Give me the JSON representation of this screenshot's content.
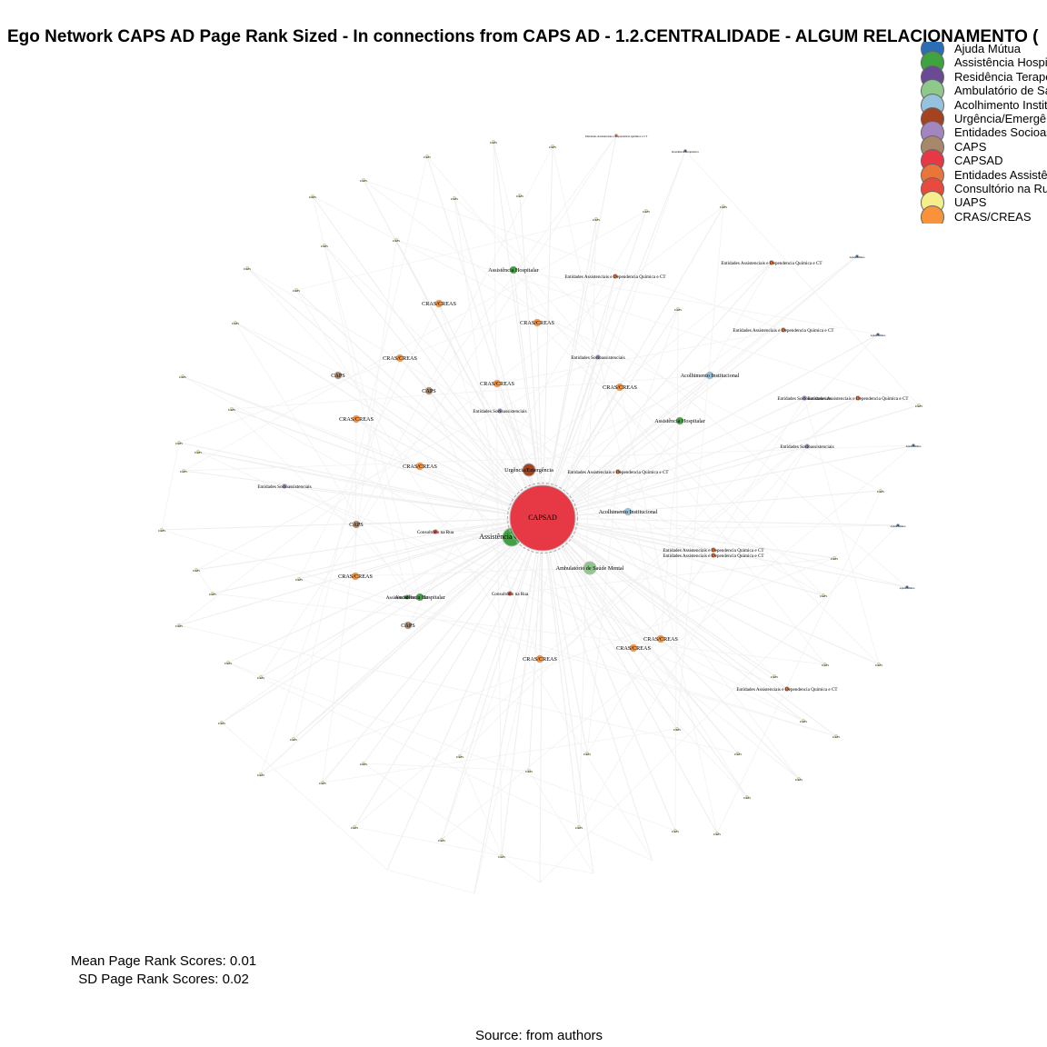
{
  "title": "Ego Network CAPS AD Page Rank Sized - In connections from CAPS AD - 1.2.CENTRALIDADE - ALGUM RELACIONAMENTO (",
  "legend": [
    {
      "label": "Ajuda Mútua",
      "color": "#2c6eb5"
    },
    {
      "label": "Assistência Hospi",
      "color": "#3fa33f"
    },
    {
      "label": "Residência Terape",
      "color": "#6a4a93"
    },
    {
      "label": "Ambulatório de Sa",
      "color": "#8fc88b"
    },
    {
      "label": "Acolhimento Instit",
      "color": "#96c2de"
    },
    {
      "label": "Urgência/Emergên",
      "color": "#a3431f"
    },
    {
      "label": "Entidades Socioas",
      "color": "#a385c0"
    },
    {
      "label": "CAPS",
      "color": "#a8886a"
    },
    {
      "label": "CAPSAD",
      "color": "#e63945"
    },
    {
      "label": "Entidades Assistê",
      "color": "#e8753a"
    },
    {
      "label": "Consultório na Ru",
      "color": "#e84a3d"
    },
    {
      "label": "UAPS",
      "color": "#f5ee8a"
    },
    {
      "label": "CRAS/CREAS",
      "color": "#f9923a"
    }
  ],
  "nodes": [
    {
      "label": "CAPSAD",
      "type": "CAPSAD",
      "rank": 0.16
    },
    {
      "label": "Assistência Hospitalar",
      "type": "Assistência Hospitalar",
      "rank": 0.03
    },
    {
      "label": "Ambulatório de Saúde Mental",
      "type": "Ambulatório de Saúde Mental",
      "rank": 0.02
    },
    {
      "label": "Urgência/Emergência",
      "type": "Urgência/Emergência",
      "rank": 0.02
    },
    {
      "label": "Acolhimento Institucional",
      "type": "Acolhimento Institucional",
      "rank": 0.01
    },
    {
      "label": "Entidades Assistenciais e Dependencia Química e CT",
      "type": "Entidades Assistenciais",
      "rank": 0.005
    },
    {
      "label": "Consultório na Rua",
      "type": "Consultório na Rua",
      "rank": 0.005
    },
    {
      "label": "Consultório na Rua",
      "type": "Consultório na Rua",
      "rank": 0.005
    },
    {
      "label": "Entidades Assistenciais e Dependencia Química e CT",
      "type": "Entidades Assistenciais",
      "rank": 0.005
    },
    {
      "label": "Entidades Assistenciais e Dependencia Química e CT",
      "type": "Entidades Assistenciais",
      "rank": 0.005
    },
    {
      "label": "CRAS/CREAS",
      "type": "CRAS/CREAS",
      "rank": 0.01
    },
    {
      "label": "CRAS/CREAS",
      "type": "CRAS/CREAS",
      "rank": 0.01
    },
    {
      "label": "CRAS/CREAS",
      "type": "CRAS/CREAS",
      "rank": 0.01
    },
    {
      "label": "CRAS/CREAS",
      "type": "CRAS/CREAS",
      "rank": 0.01
    },
    {
      "label": "CRAS/CREAS",
      "type": "CRAS/CREAS",
      "rank": 0.01
    },
    {
      "label": "CRAS/CREAS",
      "type": "CRAS/CREAS",
      "rank": 0.01
    },
    {
      "label": "CRAS/CREAS",
      "type": "CRAS/CREAS",
      "rank": 0.01
    },
    {
      "label": "CRAS/CREAS",
      "type": "CRAS/CREAS",
      "rank": 0.01
    },
    {
      "label": "CRAS/CREAS",
      "type": "CRAS/CREAS",
      "rank": 0.01
    },
    {
      "label": "CRAS/CREAS",
      "type": "CRAS/CREAS",
      "rank": 0.01
    },
    {
      "label": "CRAS/CREAS",
      "type": "CRAS/CREAS",
      "rank": 0.01
    },
    {
      "label": "Assistência Hospitalar",
      "type": "Assistência Hospitalar",
      "rank": 0.01
    },
    {
      "label": "Assistência Hospitalar",
      "type": "Assistência Hospitalar",
      "rank": 0.01
    },
    {
      "label": "Assistência Hospitalar",
      "type": "Assistência Hospitalar",
      "rank": 0.01
    },
    {
      "label": "Acolhimento Institucional",
      "type": "Acolhimento Institucional",
      "rank": 0.01
    },
    {
      "label": "Entidades Socioassistenciais",
      "type": "Entidades Socioassistenciais",
      "rank": 0.005
    },
    {
      "label": "Entidades Socioassistenciais",
      "type": "Entidades Socioassistenciais",
      "rank": 0.005
    },
    {
      "label": "Entidades Socioassistenciais",
      "type": "Entidades Socioassistenciais",
      "rank": 0.005
    },
    {
      "label": "Entidades Socioassistenciais",
      "type": "Entidades Socioassistenciais",
      "rank": 0.005
    },
    {
      "label": "Entidades Socioassistenciais",
      "type": "Entidades Socioassistenciais",
      "rank": 0.005
    },
    {
      "label": "Entidades Assistenciais e Dependencia Química e CT",
      "type": "Entidades Assistenciais",
      "rank": 0.005
    },
    {
      "label": "Entidades Assistenciais e Dependencia Química e CT",
      "type": "Entidades Assistenciais",
      "rank": 0.005
    },
    {
      "label": "Entidades Assistenciais e Dependencia Química e CT",
      "type": "Entidades Assistenciais",
      "rank": 0.005
    },
    {
      "label": "Entidades Assistenciais e Dependencia Química e CT",
      "type": "Entidades Assistenciais",
      "rank": 0.005
    },
    {
      "label": "Entidades Assistenciais e Dependencia Química e CT",
      "type": "Entidades Assistenciais",
      "rank": 0.005
    },
    {
      "label": "CAPS",
      "type": "CAPS",
      "rank": 0.01
    },
    {
      "label": "CAPS",
      "type": "CAPS",
      "rank": 0.01
    },
    {
      "label": "CAPS",
      "type": "CAPS",
      "rank": 0.01
    },
    {
      "label": "CAPS",
      "type": "CAPS",
      "rank": 0.01
    },
    {
      "label": "Assistência Hospitalar",
      "type": "Assistência Hospitalar",
      "rank": 0.005
    },
    {
      "label": "Residência Terapêutica",
      "type": "Residência Terapêutica",
      "rank": 0.003
    },
    {
      "label": "Entidades Assistenciais e Dependencia Química e CT",
      "type": "Entidades Assistenciais",
      "rank": 0.003
    },
    {
      "label": "Ajuda Mútua",
      "type": "Ajuda Mútua",
      "rank": 0.003
    },
    {
      "label": "Ajuda Mútua",
      "type": "Ajuda Mútua",
      "rank": 0.003
    },
    {
      "label": "Ajuda Mútua",
      "type": "Ajuda Mútua",
      "rank": 0.003
    },
    {
      "label": "Ajuda Mútua",
      "type": "Ajuda Mútua",
      "rank": 0.003
    },
    {
      "label": "Ajuda Mútua",
      "type": "Ajuda Mútua",
      "rank": 0.003
    },
    {
      "label": "UAPS",
      "type": "UAPS",
      "rank": 0.003
    },
    {
      "label": "UAPS",
      "type": "UAPS",
      "rank": 0.003
    },
    {
      "label": "UAPS",
      "type": "UAPS",
      "rank": 0.003
    },
    {
      "label": "UAPS",
      "type": "UAPS",
      "rank": 0.003
    },
    {
      "label": "UAPS",
      "type": "UAPS",
      "rank": 0.003
    },
    {
      "label": "UAPS",
      "type": "UAPS",
      "rank": 0.003
    },
    {
      "label": "UAPS",
      "type": "UAPS",
      "rank": 0.003
    },
    {
      "label": "UAPS",
      "type": "UAPS",
      "rank": 0.003
    },
    {
      "label": "UAPS",
      "type": "UAPS",
      "rank": 0.003
    },
    {
      "label": "UAPS",
      "type": "UAPS",
      "rank": 0.003
    },
    {
      "label": "UAPS",
      "type": "UAPS",
      "rank": 0.003
    },
    {
      "label": "UAPS",
      "type": "UAPS",
      "rank": 0.003
    },
    {
      "label": "UAPS",
      "type": "UAPS",
      "rank": 0.003
    },
    {
      "label": "UAPS",
      "type": "UAPS",
      "rank": 0.003
    },
    {
      "label": "UAPS",
      "type": "UAPS",
      "rank": 0.003
    },
    {
      "label": "UAPS",
      "type": "UAPS",
      "rank": 0.003
    },
    {
      "label": "UAPS",
      "type": "UAPS",
      "rank": 0.003
    },
    {
      "label": "UAPS",
      "type": "UAPS",
      "rank": 0.003
    },
    {
      "label": "UAPS",
      "type": "UAPS",
      "rank": 0.003
    },
    {
      "label": "UAPS",
      "type": "UAPS",
      "rank": 0.003
    },
    {
      "label": "UAPS",
      "type": "UAPS",
      "rank": 0.003
    },
    {
      "label": "UAPS",
      "type": "UAPS",
      "rank": 0.003
    },
    {
      "label": "UAPS",
      "type": "UAPS",
      "rank": 0.003
    },
    {
      "label": "UAPS",
      "type": "UAPS",
      "rank": 0.003
    },
    {
      "label": "UAPS",
      "type": "UAPS",
      "rank": 0.003
    },
    {
      "label": "UAPS",
      "type": "UAPS",
      "rank": 0.003
    },
    {
      "label": "UAPS",
      "type": "UAPS",
      "rank": 0.003
    },
    {
      "label": "UAPS",
      "type": "UAPS",
      "rank": 0.003
    },
    {
      "label": "UAPS",
      "type": "UAPS",
      "rank": 0.003
    },
    {
      "label": "UAPS",
      "type": "UAPS",
      "rank": 0.003
    },
    {
      "label": "UAPS",
      "type": "UAPS",
      "rank": 0.003
    },
    {
      "label": "UAPS",
      "type": "UAPS",
      "rank": 0.003
    },
    {
      "label": "UAPS",
      "type": "UAPS",
      "rank": 0.003
    },
    {
      "label": "UAPS",
      "type": "UAPS",
      "rank": 0.003
    },
    {
      "label": "UAPS",
      "type": "UAPS",
      "rank": 0.003
    },
    {
      "label": "UAPS",
      "type": "UAPS",
      "rank": 0.003
    },
    {
      "label": "UAPS",
      "type": "UAPS",
      "rank": 0.003
    },
    {
      "label": "UAPS",
      "type": "UAPS",
      "rank": 0.003
    },
    {
      "label": "UAPS",
      "type": "UAPS",
      "rank": 0.003
    },
    {
      "label": "UAPS",
      "type": "UAPS",
      "rank": 0.003
    },
    {
      "label": "UAPS",
      "type": "UAPS",
      "rank": 0.003
    },
    {
      "label": "UAPS",
      "type": "UAPS",
      "rank": 0.003
    },
    {
      "label": "UAPS",
      "type": "UAPS",
      "rank": 0.003
    },
    {
      "label": "UAPS",
      "type": "UAPS",
      "rank": 0.003
    },
    {
      "label": "UAPS",
      "type": "UAPS",
      "rank": 0.003
    },
    {
      "label": "UAPS",
      "type": "UAPS",
      "rank": 0.003
    },
    {
      "label": "UAPS",
      "type": "UAPS",
      "rank": 0.003
    },
    {
      "label": "UAPS",
      "type": "UAPS",
      "rank": 0.003
    },
    {
      "label": "UAPS",
      "type": "UAPS",
      "rank": 0.003
    },
    {
      "label": "UAPS",
      "type": "UAPS",
      "rank": 0.003
    },
    {
      "label": "UAPS",
      "type": "UAPS",
      "rank": 0.003
    },
    {
      "label": "UAPS",
      "type": "UAPS",
      "rank": 0.003
    },
    {
      "label": "UAPS",
      "type": "UAPS",
      "rank": 0.003
    },
    {
      "label": "UAPS",
      "type": "UAPS",
      "rank": 0.003
    },
    {
      "label": "UAPS",
      "type": "UAPS",
      "rank": 0.003
    }
  ],
  "stats": {
    "mean": "Mean Page Rank Scores: 0.01",
    "sd": "SD Page Rank Scores: 0.02"
  },
  "source": "Source: from authors"
}
